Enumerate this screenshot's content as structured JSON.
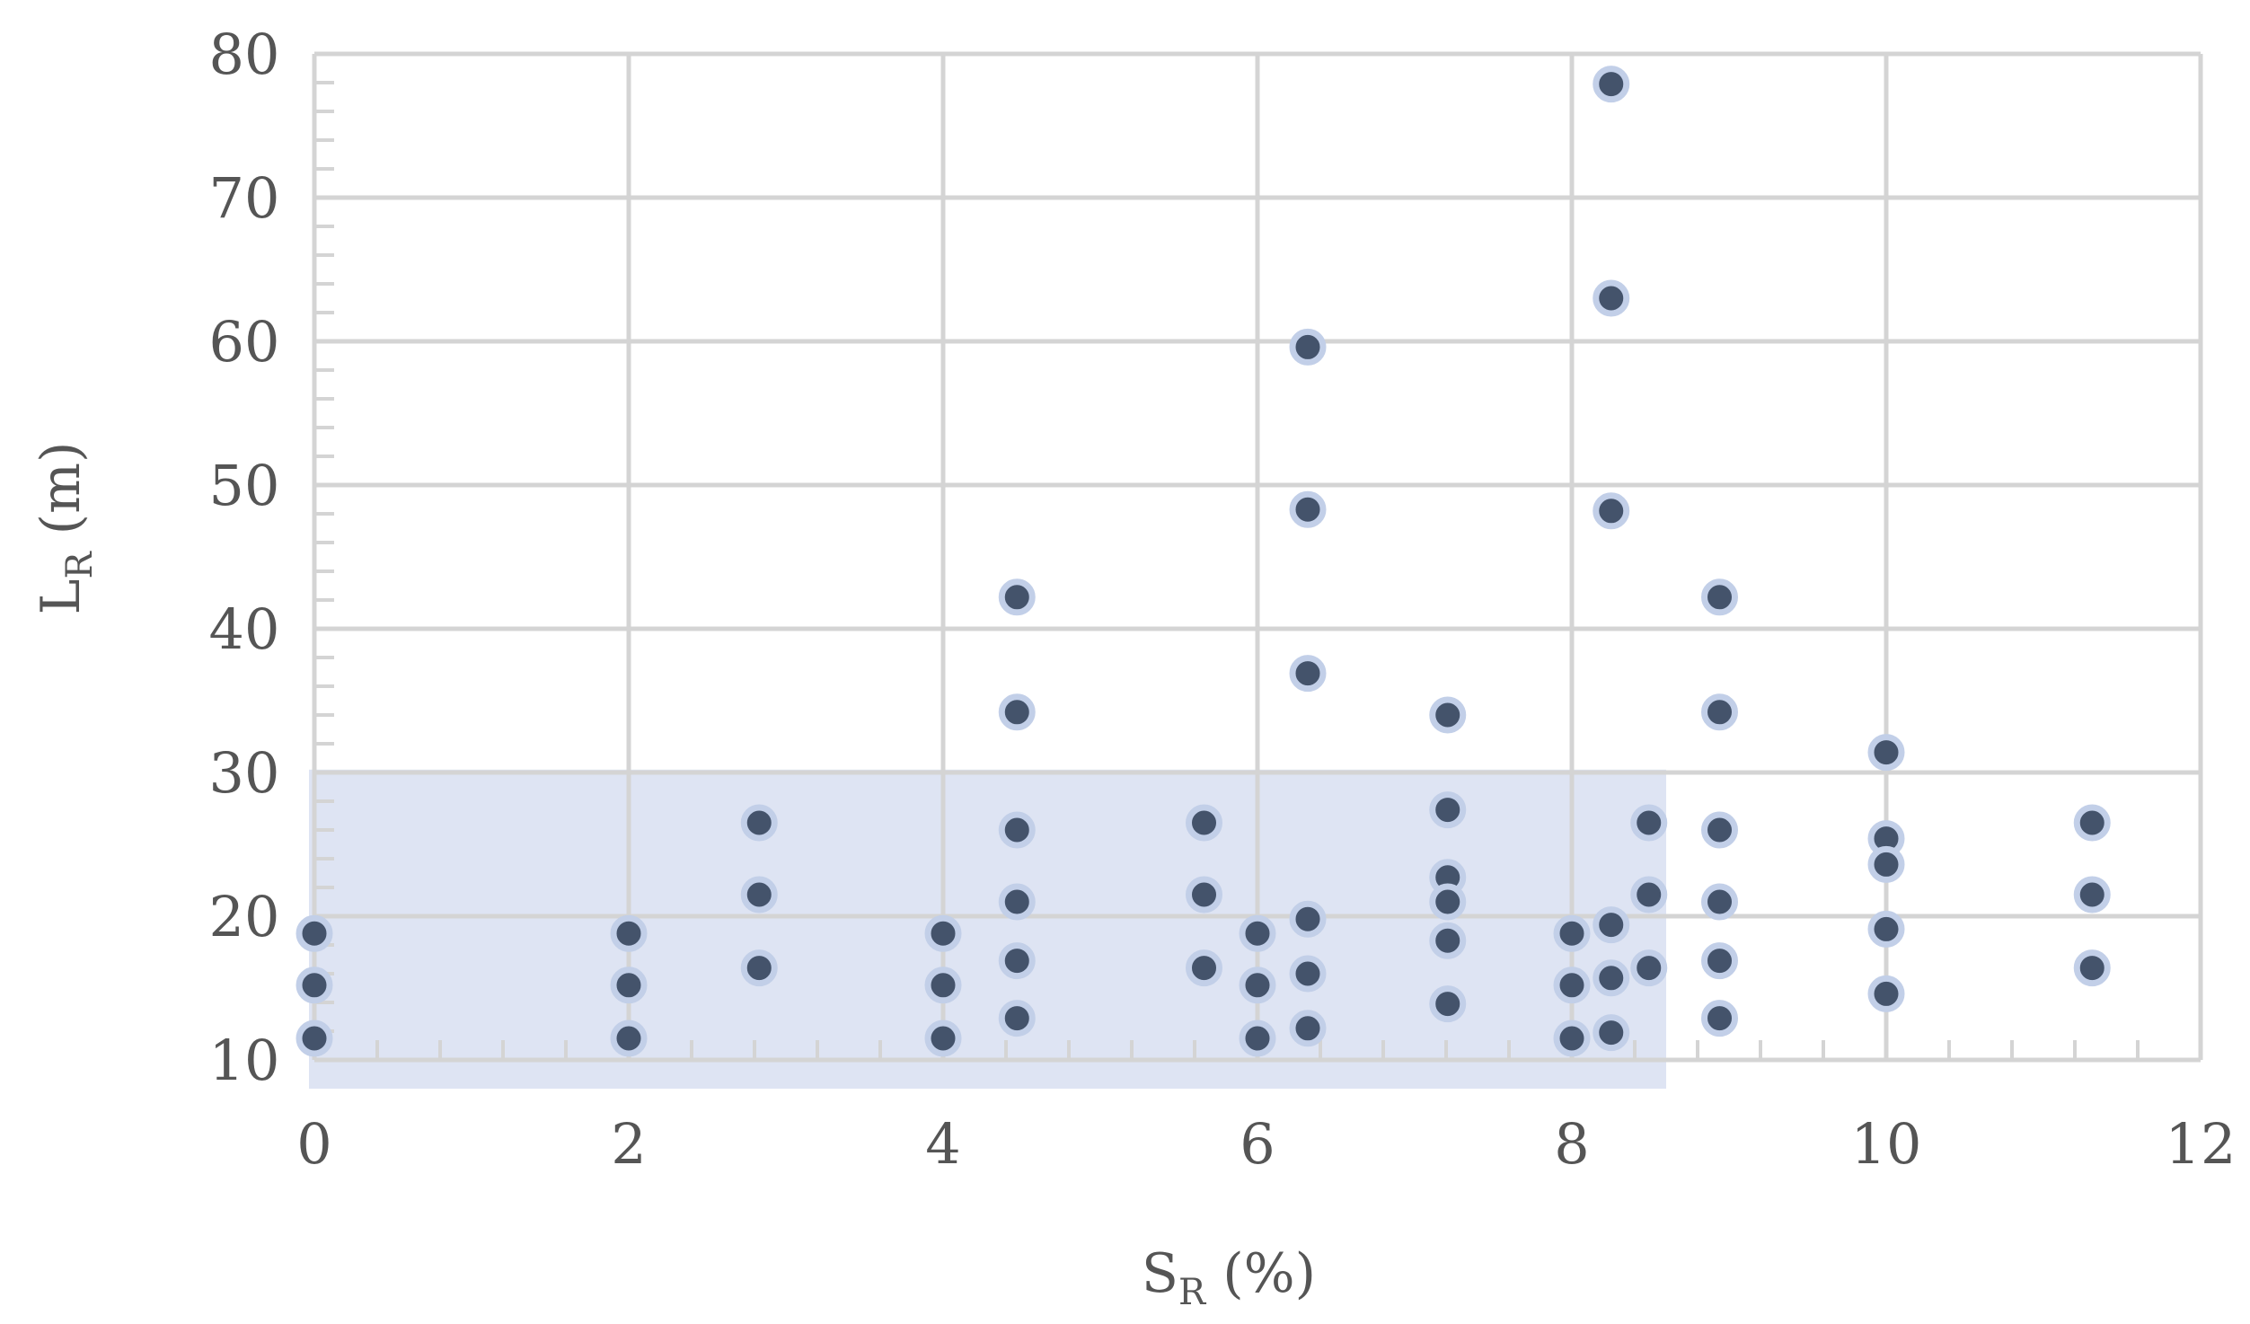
{
  "chart_data": {
    "type": "scatter",
    "title": "",
    "xlabel": {
      "main": "S",
      "sub": "R",
      "unit": " (%)"
    },
    "ylabel": {
      "main": "L",
      "sub": "R",
      "unit": " (m)"
    },
    "xlim": [
      0,
      12
    ],
    "ylim": [
      10,
      80
    ],
    "x_ticks": [
      0,
      2,
      4,
      6,
      8,
      10,
      12
    ],
    "y_ticks": [
      10,
      20,
      30,
      40,
      50,
      60,
      70,
      80
    ],
    "grid": true,
    "highlight_region": {
      "x": [
        0,
        8.6
      ],
      "y": [
        8,
        30.2
      ],
      "color": "#dce3f2"
    },
    "marker": {
      "fill": "#44536b",
      "halo": "#c2cfe8"
    },
    "points": [
      [
        0,
        18.8
      ],
      [
        0,
        15.2
      ],
      [
        0,
        11.5
      ],
      [
        2,
        18.8
      ],
      [
        2,
        15.2
      ],
      [
        2,
        11.5
      ],
      [
        2.83,
        26.5
      ],
      [
        2.83,
        21.5
      ],
      [
        2.83,
        16.4
      ],
      [
        4,
        18.8
      ],
      [
        4,
        15.2
      ],
      [
        4,
        11.5
      ],
      [
        4.47,
        42.2
      ],
      [
        4.47,
        34.2
      ],
      [
        4.47,
        26.0
      ],
      [
        4.47,
        21.0
      ],
      [
        4.47,
        16.9
      ],
      [
        4.47,
        12.9
      ],
      [
        5.66,
        26.5
      ],
      [
        5.66,
        21.5
      ],
      [
        5.66,
        16.4
      ],
      [
        6,
        18.8
      ],
      [
        6,
        15.2
      ],
      [
        6,
        11.5
      ],
      [
        6.32,
        59.6
      ],
      [
        6.32,
        48.3
      ],
      [
        6.32,
        36.9
      ],
      [
        6.32,
        19.8
      ],
      [
        6.32,
        16.0
      ],
      [
        6.32,
        12.2
      ],
      [
        7.21,
        34.0
      ],
      [
        7.21,
        27.4
      ],
      [
        7.21,
        22.7
      ],
      [
        7.21,
        21.0
      ],
      [
        7.21,
        18.3
      ],
      [
        7.21,
        13.9
      ],
      [
        8,
        18.8
      ],
      [
        8,
        15.2
      ],
      [
        8,
        11.5
      ],
      [
        8.25,
        77.9
      ],
      [
        8.25,
        63.0
      ],
      [
        8.25,
        48.2
      ],
      [
        8.25,
        19.4
      ],
      [
        8.25,
        15.7
      ],
      [
        8.25,
        11.9
      ],
      [
        8.49,
        26.5
      ],
      [
        8.49,
        21.5
      ],
      [
        8.49,
        16.4
      ],
      [
        8.94,
        42.2
      ],
      [
        8.94,
        34.2
      ],
      [
        8.94,
        26.0
      ],
      [
        8.94,
        21.0
      ],
      [
        8.94,
        16.9
      ],
      [
        8.94,
        12.9
      ],
      [
        10,
        31.4
      ],
      [
        10,
        25.4
      ],
      [
        10,
        23.6
      ],
      [
        10,
        19.1
      ],
      [
        10,
        14.6
      ],
      [
        11.31,
        26.5
      ],
      [
        11.31,
        21.5
      ],
      [
        11.31,
        16.4
      ]
    ]
  }
}
